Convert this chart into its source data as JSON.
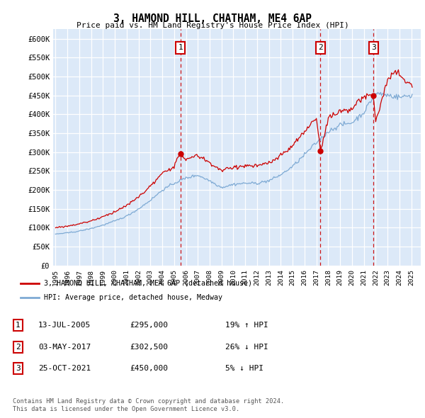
{
  "title": "3, HAMOND HILL, CHATHAM, ME4 6AP",
  "subtitle": "Price paid vs. HM Land Registry's House Price Index (HPI)",
  "ytick_values": [
    0,
    50000,
    100000,
    150000,
    200000,
    250000,
    300000,
    350000,
    400000,
    450000,
    500000,
    550000,
    600000
  ],
  "ylabel_ticks": [
    "£0",
    "£50K",
    "£100K",
    "£150K",
    "£200K",
    "£250K",
    "£300K",
    "£350K",
    "£400K",
    "£450K",
    "£500K",
    "£550K",
    "£600K"
  ],
  "ylim": [
    0,
    625000
  ],
  "xlim_start": 1994.8,
  "xlim_end": 2025.8,
  "plot_bg_color": "#dce9f8",
  "grid_color": "#c8d8ec",
  "transactions": [
    {
      "label": "1",
      "date": "13-JUL-2005",
      "year": 2005.54,
      "price": 295000,
      "hpi_pct": "19% ↑ HPI"
    },
    {
      "label": "2",
      "date": "03-MAY-2017",
      "year": 2017.34,
      "price": 302500,
      "hpi_pct": "26% ↓ HPI"
    },
    {
      "label": "3",
      "date": "25-OCT-2021",
      "year": 2021.81,
      "price": 450000,
      "hpi_pct": "5% ↓ HPI"
    }
  ],
  "legend_label_red": "3, HAMOND HILL, CHATHAM, ME4 6AP (detached house)",
  "legend_label_blue": "HPI: Average price, detached house, Medway",
  "footer1": "Contains HM Land Registry data © Crown copyright and database right 2024.",
  "footer2": "This data is licensed under the Open Government Licence v3.0.",
  "red_color": "#cc0000",
  "blue_color": "#7eaad4",
  "hpi_base_nodes_x": [
    1995.0,
    1996.0,
    1997.0,
    1998.0,
    1999.0,
    2000.0,
    2001.0,
    2002.0,
    2003.0,
    2004.0,
    2005.0,
    2006.0,
    2007.0,
    2008.0,
    2009.0,
    2010.0,
    2011.0,
    2012.0,
    2013.0,
    2014.0,
    2015.0,
    2016.0,
    2017.0,
    2018.0,
    2019.0,
    2020.0,
    2021.0,
    2022.0,
    2023.0,
    2024.0,
    2025.0
  ],
  "hpi_base_nodes_y": [
    83000,
    86000,
    91000,
    98000,
    107000,
    118000,
    131000,
    150000,
    173000,
    200000,
    218000,
    232000,
    240000,
    225000,
    207000,
    215000,
    218000,
    218000,
    224000,
    240000,
    262000,
    293000,
    325000,
    355000,
    372000,
    378000,
    405000,
    455000,
    450000,
    445000,
    450000
  ],
  "red_base_nodes_x": [
    1995.0,
    1996.0,
    1997.0,
    1998.0,
    1999.0,
    2000.0,
    2001.0,
    2002.0,
    2003.0,
    2004.0,
    2005.0,
    2005.54,
    2006.0,
    2007.0,
    2008.0,
    2009.0,
    2010.0,
    2011.0,
    2012.0,
    2013.0,
    2014.0,
    2015.0,
    2016.0,
    2017.0,
    2017.34,
    2018.0,
    2019.0,
    2020.0,
    2021.0,
    2021.81,
    2022.0,
    2022.5,
    2023.0,
    2023.5,
    2024.0,
    2024.5,
    2025.0
  ],
  "red_base_nodes_y": [
    100000,
    104000,
    110000,
    118000,
    129000,
    142000,
    158000,
    181000,
    209000,
    242000,
    263000,
    295000,
    280000,
    290000,
    271000,
    250000,
    259000,
    263000,
    263000,
    270000,
    290000,
    317000,
    354000,
    392000,
    302500,
    390000,
    410000,
    416000,
    447000,
    450000,
    380000,
    440000,
    490000,
    510000,
    510000,
    490000,
    480000
  ]
}
